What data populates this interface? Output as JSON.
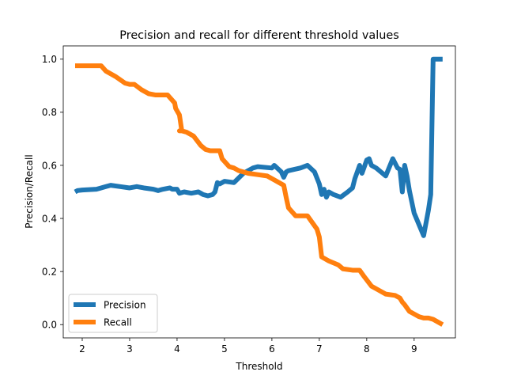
{
  "chart_data": {
    "type": "line",
    "title": "Precision and recall for different threshold values",
    "xlabel": "Threshold",
    "ylabel": "Precision/Recall",
    "xlim": [
      1.6,
      9.87
    ],
    "ylim": [
      -0.05,
      1.05
    ],
    "xticks": [
      2,
      3,
      4,
      5,
      6,
      7,
      8,
      9
    ],
    "yticks": [
      0.0,
      0.2,
      0.4,
      0.6,
      0.8,
      1.0
    ],
    "ytick_labels": [
      "0.0",
      "0.2",
      "0.4",
      "0.6",
      "0.8",
      "1.0"
    ],
    "grid": false,
    "legend_position": "lower-left",
    "series": [
      {
        "name": "Precision",
        "color": "#1f77b4",
        "x": [
          1.85,
          1.9,
          2.0,
          2.3,
          2.5,
          2.6,
          2.8,
          3.0,
          3.15,
          3.3,
          3.5,
          3.6,
          3.7,
          3.85,
          3.9,
          4.0,
          4.05,
          4.15,
          4.3,
          4.45,
          4.55,
          4.65,
          4.75,
          4.8,
          4.85,
          4.9,
          5.0,
          5.2,
          5.4,
          5.5,
          5.6,
          5.7,
          6.0,
          6.05,
          6.2,
          6.25,
          6.3,
          6.35,
          6.6,
          6.75,
          6.9,
          7.0,
          7.05,
          7.1,
          7.15,
          7.2,
          7.3,
          7.45,
          7.6,
          7.7,
          7.75,
          7.8,
          7.85,
          7.9,
          8.0,
          8.05,
          8.1,
          8.2,
          8.4,
          8.55,
          8.65,
          8.7,
          8.75,
          8.8,
          8.85,
          8.9,
          9.0,
          9.2,
          9.3,
          9.35,
          9.4,
          9.6
        ],
        "y": [
          0.5,
          0.505,
          0.507,
          0.51,
          0.52,
          0.525,
          0.52,
          0.515,
          0.52,
          0.515,
          0.51,
          0.505,
          0.51,
          0.515,
          0.51,
          0.51,
          0.495,
          0.5,
          0.495,
          0.5,
          0.49,
          0.485,
          0.49,
          0.5,
          0.535,
          0.53,
          0.54,
          0.535,
          0.57,
          0.58,
          0.59,
          0.595,
          0.59,
          0.6,
          0.575,
          0.555,
          0.575,
          0.58,
          0.59,
          0.6,
          0.575,
          0.53,
          0.49,
          0.51,
          0.48,
          0.5,
          0.49,
          0.48,
          0.5,
          0.515,
          0.55,
          0.575,
          0.6,
          0.57,
          0.62,
          0.625,
          0.6,
          0.59,
          0.56,
          0.625,
          0.59,
          0.585,
          0.5,
          0.6,
          0.56,
          0.505,
          0.42,
          0.335,
          0.43,
          0.49,
          1.0,
          1.0
        ]
      },
      {
        "name": "Recall",
        "color": "#ff7f0e",
        "x": [
          1.85,
          2.0,
          2.2,
          2.4,
          2.5,
          2.7,
          2.9,
          3.0,
          3.1,
          3.25,
          3.4,
          3.55,
          3.6,
          3.8,
          3.95,
          3.97,
          4.05,
          4.1,
          4.05,
          4.1,
          4.2,
          4.35,
          4.5,
          4.6,
          4.7,
          4.9,
          4.95,
          5.1,
          5.2,
          5.3,
          5.5,
          5.7,
          5.9,
          6.05,
          6.15,
          6.25,
          6.3,
          6.35,
          6.5,
          6.6,
          6.75,
          6.85,
          6.95,
          7.0,
          7.05,
          7.2,
          7.4,
          7.5,
          7.7,
          7.85,
          7.95,
          8.1,
          8.2,
          8.4,
          8.6,
          8.7,
          8.75,
          8.8,
          8.9,
          9.0,
          9.1,
          9.2,
          9.3,
          9.4,
          9.6
        ],
        "y": [
          0.975,
          0.975,
          0.975,
          0.975,
          0.955,
          0.935,
          0.91,
          0.905,
          0.905,
          0.885,
          0.87,
          0.865,
          0.865,
          0.865,
          0.835,
          0.815,
          0.79,
          0.73,
          0.73,
          0.73,
          0.725,
          0.71,
          0.675,
          0.66,
          0.655,
          0.655,
          0.625,
          0.595,
          0.59,
          0.58,
          0.57,
          0.565,
          0.56,
          0.545,
          0.535,
          0.525,
          0.48,
          0.44,
          0.41,
          0.41,
          0.41,
          0.385,
          0.36,
          0.33,
          0.255,
          0.24,
          0.225,
          0.21,
          0.205,
          0.205,
          0.18,
          0.145,
          0.135,
          0.115,
          0.11,
          0.1,
          0.085,
          0.075,
          0.05,
          0.04,
          0.03,
          0.025,
          0.025,
          0.02,
          0.0
        ]
      }
    ]
  }
}
